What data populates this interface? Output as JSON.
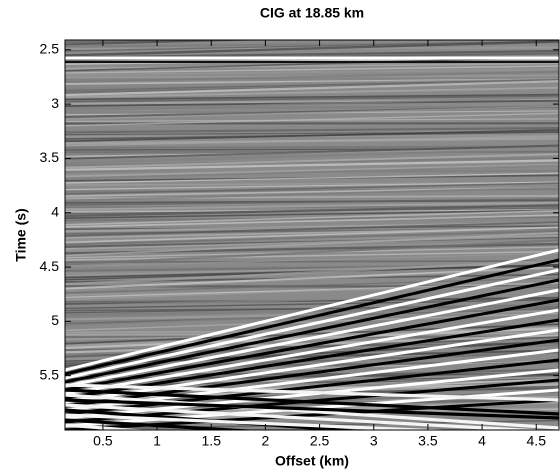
{
  "chart_data": {
    "type": "image",
    "title": "CIG at 18.85 km",
    "x_label": "Offset (km)",
    "y_label": "Time (s)",
    "xlim": [
      0.15,
      4.71
    ],
    "ylim": [
      2.41,
      6.0
    ],
    "y_inverted": true,
    "xticks": [
      0.5,
      1,
      1.5,
      2,
      2.5,
      3,
      3.5,
      4,
      4.5
    ],
    "yticks": [
      2.5,
      3,
      3.5,
      4,
      4.5,
      5,
      5.5
    ],
    "colormap": "gray"
  }
}
